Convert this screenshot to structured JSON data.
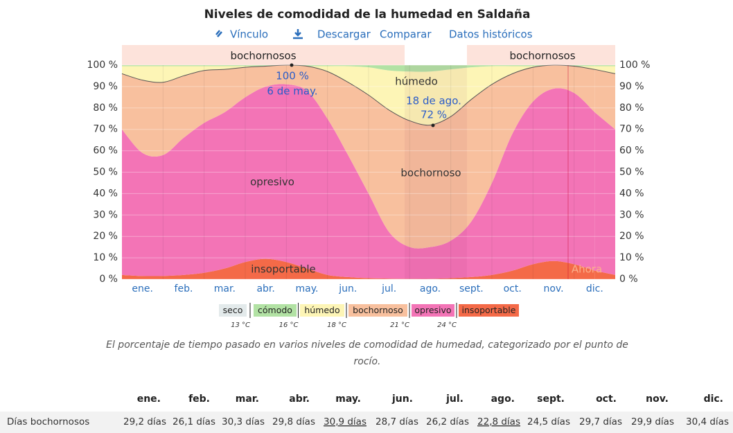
{
  "chart_data": {
    "type": "stacked_area",
    "title": "Niveles de comodidad de la humedad en Saldaña",
    "links": [
      "Vínculo",
      "Descargar",
      "Comparar",
      "Datos históricos"
    ],
    "categories": [
      null,
      "ene.",
      null,
      "feb.",
      null,
      "mar.",
      null,
      "abr.",
      null,
      "may.",
      null,
      "jun.",
      null,
      "jul.",
      null,
      "ago.",
      null,
      "sept.",
      null,
      "oct.",
      null,
      "nov.",
      null,
      "dic."
    ],
    "series": [
      {
        "name": "insoportable",
        "color": "#f46a48",
        "values": [
          2,
          1.5,
          1.5,
          2,
          3,
          5,
          8,
          9.5,
          8,
          5,
          2,
          1,
          0.5,
          0.3,
          0.2,
          0.2,
          0.5,
          1,
          2,
          4,
          7,
          8.5,
          7,
          4
        ]
      },
      {
        "name": "opresivo",
        "color": "#f374b6",
        "values": [
          68,
          57.5,
          56.5,
          64,
          70,
          73,
          77,
          80.5,
          83,
          83,
          73,
          57,
          39.5,
          21.7,
          14.8,
          14.8,
          17.5,
          26,
          43,
          64,
          76,
          80.5,
          80,
          74
        ]
      },
      {
        "name": "bochornoso",
        "color": "#f8c09e",
        "values": [
          26,
          34,
          34,
          29,
          24.5,
          20,
          14,
          9.5,
          9,
          11.5,
          22,
          34,
          46,
          57,
          59,
          57,
          58,
          57,
          46,
          28,
          16,
          11,
          12.5,
          20
        ]
      },
      {
        "name": "húmedo",
        "color": "#fdf5b6",
        "values": [
          3.5,
          6.5,
          7.5,
          4.5,
          2,
          1.5,
          0.5,
          0,
          0,
          0,
          2.5,
          7.5,
          13,
          18.5,
          23,
          25,
          22,
          15,
          8.5,
          3.5,
          0.5,
          0,
          0,
          1.5
        ]
      },
      {
        "name": "cómodo",
        "color": "#b2e2a4",
        "values": [
          0.5,
          0.5,
          0.5,
          0.5,
          0.5,
          0.5,
          0.5,
          0.5,
          0,
          0.5,
          0.5,
          0.5,
          1,
          2.5,
          3,
          3,
          2,
          1,
          0.5,
          0.5,
          0.5,
          0,
          0.5,
          0.5
        ]
      },
      {
        "name": "seco",
        "color": "#e3eaeb",
        "values": [
          0,
          0,
          0,
          0,
          0,
          0,
          0,
          0,
          0,
          0,
          0,
          0,
          0,
          0,
          0,
          0,
          0,
          0,
          0,
          0,
          0,
          0,
          0,
          0
        ]
      }
    ],
    "legend_thresholds": [
      "13 °C",
      "16 °C",
      "18 °C",
      "21 °C",
      "24 °C"
    ],
    "ylim": [
      0,
      100
    ],
    "yticks": [
      {
        "value": 0,
        "label": "0 %"
      },
      {
        "value": 10,
        "label": "10 %"
      },
      {
        "value": 20,
        "label": "20 %"
      },
      {
        "value": 30,
        "label": "30 %"
      },
      {
        "value": 40,
        "label": "40 %"
      },
      {
        "value": 50,
        "label": "50 %"
      },
      {
        "value": 60,
        "label": "60 %"
      },
      {
        "value": 70,
        "label": "70 %"
      },
      {
        "value": 80,
        "label": "80 %"
      },
      {
        "value": 90,
        "label": "90 %"
      },
      {
        "value": 100,
        "label": "100 %"
      }
    ],
    "grid": true,
    "season_labels": [
      "bochornosos",
      "bochornosos"
    ],
    "area_labels": [
      "húmedo",
      "bochornoso",
      "opresivo",
      "insoportable"
    ],
    "annotations": [
      "100 %",
      "6 de may.",
      "18 de ago.",
      "72 %",
      "Ahora"
    ],
    "caption": "El porcentaje de tiempo pasado en varios niveles de comodidad de humedad, categorizado por el punto de rocío."
  },
  "table": {
    "header": [
      "ene.",
      "feb.",
      "mar.",
      "abr.",
      "may.",
      "jun.",
      "jul.",
      "ago.",
      "sept.",
      "oct.",
      "nov.",
      "dic."
    ],
    "rows": [
      {
        "label": "Días bochornosos",
        "values": [
          "29,2 días",
          "26,1 días",
          "30,3 días",
          "29,8 días",
          "30,9 días",
          "28,7 días",
          "26,2 días",
          "22,8 días",
          "24,5 días",
          "29,7 días",
          "29,9 días",
          "30,4 días"
        ]
      }
    ]
  }
}
